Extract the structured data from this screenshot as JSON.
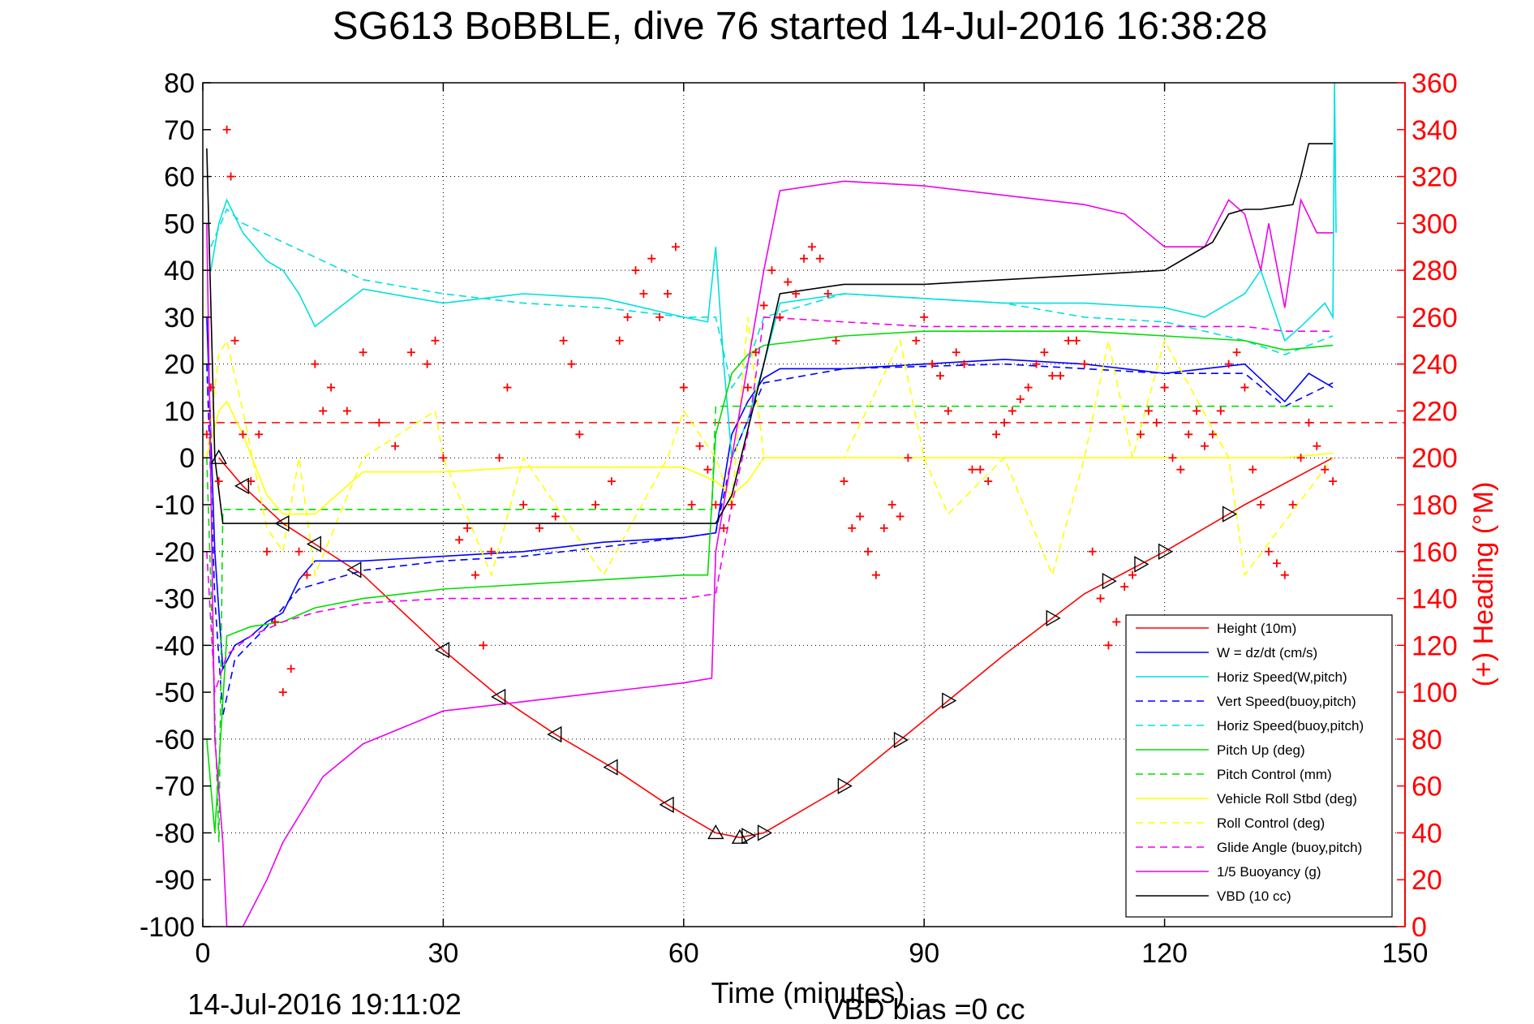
{
  "chart_data": {
    "type": "line",
    "title": "SG613 BoBBLE, dive 76 started 14-Jul-2016 16:38:28",
    "xlabel": "Time (minutes)",
    "ylabel_right": "(+) Heading (°M)",
    "footer_left": "14-Jul-2016 19:11:02",
    "footer_right": "VBD bias =0 cc",
    "xlim": [
      0,
      150
    ],
    "ylim": [
      -100,
      80
    ],
    "ylim_right": [
      0,
      360
    ],
    "xticks": [
      "0",
      "30",
      "60",
      "90",
      "120",
      "150"
    ],
    "yticks": [
      "80",
      "70",
      "60",
      "50",
      "40",
      "30",
      "20",
      "10",
      "0",
      "-10",
      "-20",
      "-30",
      "-40",
      "-50",
      "-60",
      "-70",
      "-80",
      "-90",
      "-100"
    ],
    "yticks_right": [
      "360",
      "340",
      "320",
      "300",
      "280",
      "260",
      "240",
      "220",
      "200",
      "180",
      "160",
      "140",
      "120",
      "100",
      "80",
      "60",
      "40",
      "20",
      "0"
    ],
    "grid": true,
    "legend_position": "lower-right",
    "series": [
      {
        "name": "Height (10m)",
        "color": "#ff0000",
        "dash": "solid",
        "x": [
          2,
          5,
          10,
          20,
          30,
          37,
          44,
          51,
          58,
          64,
          67,
          70,
          80,
          90,
          100,
          110,
          120,
          130,
          141
        ],
        "y": [
          0,
          -6,
          -14,
          -25,
          -41,
          -51,
          -59,
          -66,
          -74,
          -80,
          -81,
          -80,
          -70,
          -56,
          -42,
          -29,
          -20,
          -10,
          0
        ]
      },
      {
        "name": "W = dz/dt (cm/s)",
        "color": "#0000ff",
        "dash": "solid",
        "x": [
          0.5,
          1.5,
          2.5,
          4,
          6,
          8,
          10,
          12,
          14,
          20,
          30,
          40,
          50,
          60,
          64,
          66,
          68,
          70,
          72,
          80,
          90,
          100,
          110,
          120,
          125,
          130,
          135,
          138,
          141
        ],
        "y": [
          30,
          -20,
          -45,
          -40,
          -38,
          -35,
          -33,
          -26,
          -22,
          -22,
          -21,
          -20,
          -18,
          -17,
          -16,
          5,
          12,
          17,
          19,
          19,
          20,
          21,
          20,
          18,
          19,
          20,
          12,
          18,
          15
        ]
      },
      {
        "name": "Horiz Speed(W,pitch)",
        "color": "#00e0e0",
        "dash": "solid",
        "x": [
          1,
          2,
          3,
          5,
          8,
          10,
          12,
          14,
          20,
          30,
          40,
          50,
          60,
          63,
          64,
          65,
          66,
          68,
          70,
          72,
          80,
          90,
          100,
          110,
          120,
          125,
          130,
          132,
          135,
          137,
          140,
          141,
          141.2,
          141.4
        ],
        "y": [
          40,
          50,
          55,
          48,
          42,
          40,
          35,
          28,
          36,
          33,
          35,
          34,
          30,
          29,
          45,
          20,
          0,
          8,
          20,
          33,
          35,
          34,
          33,
          33,
          32,
          30,
          35,
          40,
          25,
          28,
          33,
          30,
          80,
          48
        ]
      },
      {
        "name": "Vert Speed(buoy,pitch)",
        "color": "#0000ff",
        "dash": "dashed",
        "x": [
          0.5,
          1.5,
          2.5,
          4,
          8,
          12,
          20,
          30,
          40,
          50,
          60,
          64,
          66,
          70,
          80,
          100,
          120,
          130,
          135,
          141
        ],
        "y": [
          20,
          -30,
          -55,
          -43,
          -36,
          -28,
          -24,
          -22,
          -21,
          -19,
          -17,
          -16,
          0,
          16,
          19,
          20,
          18,
          18,
          11,
          16
        ]
      },
      {
        "name": "Horiz Speed(buoy,pitch)",
        "color": "#00e0e0",
        "dash": "dashed",
        "x": [
          1,
          3,
          5,
          10,
          20,
          30,
          40,
          50,
          60,
          64,
          66,
          68,
          70,
          80,
          90,
          100,
          110,
          120,
          130,
          135,
          141
        ],
        "y": [
          45,
          53,
          50,
          46,
          38,
          35,
          33,
          32,
          30,
          30,
          15,
          20,
          30,
          35,
          34,
          33,
          30,
          29,
          25,
          22,
          26
        ]
      },
      {
        "name": "Pitch Up (deg)",
        "color": "#00dd00",
        "dash": "solid",
        "x": [
          0.5,
          1.5,
          3,
          6,
          10,
          14,
          20,
          30,
          40,
          50,
          60,
          63,
          64,
          66,
          68,
          70,
          80,
          90,
          100,
          110,
          120,
          130,
          135,
          141
        ],
        "y": [
          -60,
          -80,
          -38,
          -36,
          -35,
          -32,
          -30,
          -28,
          -27,
          -26,
          -25,
          -25,
          5,
          18,
          22,
          24,
          26,
          27,
          27,
          27,
          26,
          25,
          23,
          24
        ]
      },
      {
        "name": "Pitch Control (mm)",
        "color": "#00dd00",
        "dash": "dashed",
        "x": [
          0.5,
          2,
          2.5,
          63.5,
          64,
          141
        ],
        "y": [
          0,
          -82,
          -11,
          -11,
          11,
          11
        ]
      },
      {
        "name": "Vehicle Roll Stbd (deg)",
        "color": "#ffff00",
        "dash": "solid",
        "x": [
          0.5,
          2,
          3,
          5,
          8,
          10,
          14,
          20,
          30,
          40,
          50,
          60,
          64,
          66,
          68,
          70,
          80,
          90,
          100,
          110,
          120,
          130,
          135,
          141
        ],
        "y": [
          0,
          10,
          12,
          5,
          -8,
          -12,
          -12,
          -3,
          -3,
          -2,
          -2,
          -2,
          -5,
          -8,
          -5,
          0,
          0,
          0,
          0,
          0,
          0,
          0,
          0,
          1
        ]
      },
      {
        "name": "Roll Control (deg)",
        "color": "#ffff00",
        "dash": "dashed",
        "x": [
          0.5,
          2,
          3,
          5,
          8,
          10,
          12,
          14,
          20,
          29,
          30,
          36,
          40,
          50,
          58,
          60,
          64,
          66,
          68,
          70,
          80,
          87,
          90,
          93,
          100,
          106,
          110,
          113,
          116,
          120,
          128,
          130,
          141
        ],
        "y": [
          0,
          22,
          25,
          10,
          -15,
          -20,
          0,
          -25,
          0,
          10,
          0,
          -25,
          0,
          -25,
          0,
          10,
          0,
          -10,
          30,
          0,
          0,
          25,
          0,
          -12,
          0,
          -25,
          0,
          25,
          0,
          25,
          0,
          -25,
          0
        ]
      },
      {
        "name": "Glide Angle (buoy,pitch)",
        "color": "#ee00ee",
        "dash": "dashed",
        "x": [
          0.5,
          1.5,
          3,
          6,
          10,
          14,
          20,
          30,
          40,
          50,
          60,
          64,
          66,
          68,
          70,
          80,
          90,
          100,
          110,
          120,
          130,
          135,
          141
        ],
        "y": [
          -20,
          -50,
          -42,
          -38,
          -35,
          -33,
          -31,
          -30,
          -30,
          -30,
          -30,
          -29,
          -10,
          5,
          30,
          29,
          28,
          28,
          28,
          28,
          28,
          27,
          27
        ]
      },
      {
        "name": "1/5 Buoyancy (g)",
        "color": "#ee00ee",
        "dash": "solid",
        "x": [
          0.5,
          1.5,
          2.5,
          3,
          5,
          8,
          10,
          15,
          20,
          30,
          40,
          50,
          60,
          63.5,
          64,
          70,
          72,
          80,
          90,
          100,
          110,
          115,
          120,
          125,
          128,
          130,
          132,
          133,
          135,
          137,
          139,
          141
        ],
        "y": [
          50,
          -60,
          -82,
          -100,
          -100,
          -90,
          -82,
          -68,
          -61,
          -54,
          -52,
          -50,
          -48,
          -47,
          -20,
          40,
          57,
          59,
          58,
          56,
          54,
          52,
          45,
          45,
          55,
          52,
          40,
          50,
          32,
          55,
          48,
          48
        ]
      },
      {
        "name": "VBD (10 cc)",
        "color": "#000000",
        "dash": "solid",
        "x": [
          0.5,
          1.5,
          2.5,
          3,
          63.5,
          64,
          66,
          70,
          72,
          80,
          90,
          100,
          110,
          120,
          124,
          126,
          128,
          130,
          132,
          136,
          137,
          138,
          141
        ],
        "y": [
          66,
          0,
          -14,
          -14,
          -14,
          -14,
          -8,
          20,
          35,
          37,
          37,
          38,
          39,
          40,
          44,
          46,
          52,
          53,
          53,
          54,
          60,
          67,
          67
        ]
      }
    ],
    "heading": {
      "name": "(+) Heading (°M)",
      "color": "#ff0000",
      "x": [
        0.5,
        1,
        2,
        3,
        3.5,
        4,
        5,
        6,
        7,
        8,
        9,
        10,
        11,
        12,
        13,
        14,
        15,
        16,
        18,
        20,
        22,
        24,
        26,
        28,
        29,
        30,
        32,
        33,
        34,
        35,
        36,
        37,
        38,
        40,
        42,
        44,
        45,
        46,
        47,
        49,
        51,
        52,
        53,
        54,
        55,
        56,
        57,
        58,
        59,
        60,
        61,
        62,
        63,
        64,
        65,
        66,
        68,
        69,
        70,
        71,
        72,
        73,
        74,
        75,
        76,
        77,
        78,
        79,
        80,
        81,
        82,
        83,
        84,
        85,
        86,
        87,
        88,
        89,
        90,
        91,
        92,
        93,
        94,
        95,
        96,
        97,
        98,
        99,
        100,
        101,
        102,
        103,
        104,
        105,
        106,
        107,
        108,
        109,
        110,
        111,
        112,
        113,
        114,
        115,
        116,
        117,
        118,
        119,
        120,
        121,
        122,
        123,
        124,
        125,
        126,
        127,
        128,
        129,
        130,
        131,
        132,
        133,
        134,
        135,
        136,
        137,
        138,
        139,
        140,
        141
      ],
      "y": [
        210,
        230,
        190,
        340,
        320,
        250,
        210,
        190,
        210,
        160,
        130,
        100,
        110,
        160,
        150,
        240,
        220,
        230,
        220,
        245,
        215,
        205,
        245,
        240,
        250,
        200,
        165,
        170,
        150,
        120,
        160,
        200,
        230,
        180,
        170,
        175,
        250,
        240,
        210,
        180,
        190,
        250,
        260,
        280,
        270,
        285,
        260,
        270,
        290,
        230,
        180,
        205,
        195,
        180,
        170,
        180,
        230,
        245,
        265,
        280,
        260,
        275,
        270,
        285,
        290,
        285,
        270,
        250,
        190,
        170,
        175,
        160,
        150,
        170,
        180,
        175,
        200,
        250,
        260,
        240,
        235,
        220,
        245,
        240,
        195,
        195,
        190,
        210,
        215,
        220,
        225,
        230,
        240,
        245,
        235,
        235,
        250,
        250,
        240,
        160,
        140,
        120,
        130,
        145,
        150,
        210,
        220,
        215,
        230,
        200,
        195,
        210,
        220,
        205,
        210,
        220,
        240,
        245,
        230,
        195,
        180,
        160,
        155,
        150,
        180,
        200,
        215,
        205,
        195,
        190
      ]
    },
    "heading_reference": {
      "color": "#ff0000",
      "dash": "dashed",
      "y_right": 215
    },
    "markers": {
      "color": "#000000",
      "up_triangle_x": [
        2,
        64,
        67
      ],
      "left_triangle_x": [
        5,
        10,
        14,
        19,
        30,
        37,
        44,
        51,
        58
      ],
      "right_triangle_x": [
        68,
        70,
        80,
        87,
        93,
        106,
        113,
        117,
        120,
        128
      ]
    }
  }
}
